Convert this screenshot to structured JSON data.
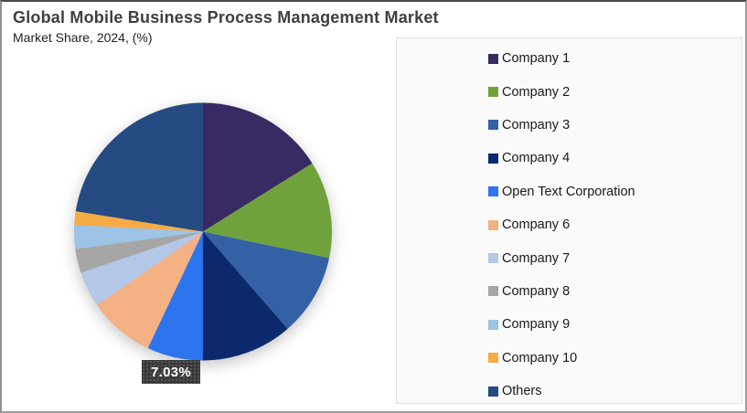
{
  "header": {
    "title": "Global Mobile Business Process Management Market",
    "subtitle": "Market Share, 2024, (%)"
  },
  "chart_data": {
    "type": "pie",
    "title": "Global Mobile Business Process Management Market",
    "subtitle": "Market Share, 2024, (%)",
    "unit": "%",
    "start_angle_deg": 0,
    "direction": "clockwise",
    "legend_position": "right",
    "slices": [
      {
        "label": "Company 1",
        "value": 16.1,
        "color": "#382a62"
      },
      {
        "label": "Company 2",
        "value": 12.2,
        "color": "#6fa23d"
      },
      {
        "label": "Company 3",
        "value": 10.3,
        "color": "#3460a5"
      },
      {
        "label": "Company 4",
        "value": 11.4,
        "color": "#0d296e"
      },
      {
        "label": "Open Text Corporation",
        "value": 7.03,
        "color": "#2d74ef"
      },
      {
        "label": "Company 6",
        "value": 8.3,
        "color": "#f4b183"
      },
      {
        "label": "Company 7",
        "value": 4.5,
        "color": "#b4c7e7"
      },
      {
        "label": "Company 8",
        "value": 3.0,
        "color": "#a6a6a6"
      },
      {
        "label": "Company 9",
        "value": 3.0,
        "color": "#9dc3e6"
      },
      {
        "label": "Company 10",
        "value": 1.7,
        "color": "#f6ab45"
      },
      {
        "label": "Others",
        "value": 22.47,
        "color": "#254b82"
      }
    ],
    "data_label": {
      "text": "7.03%",
      "slice": "Open Text Corporation"
    }
  }
}
